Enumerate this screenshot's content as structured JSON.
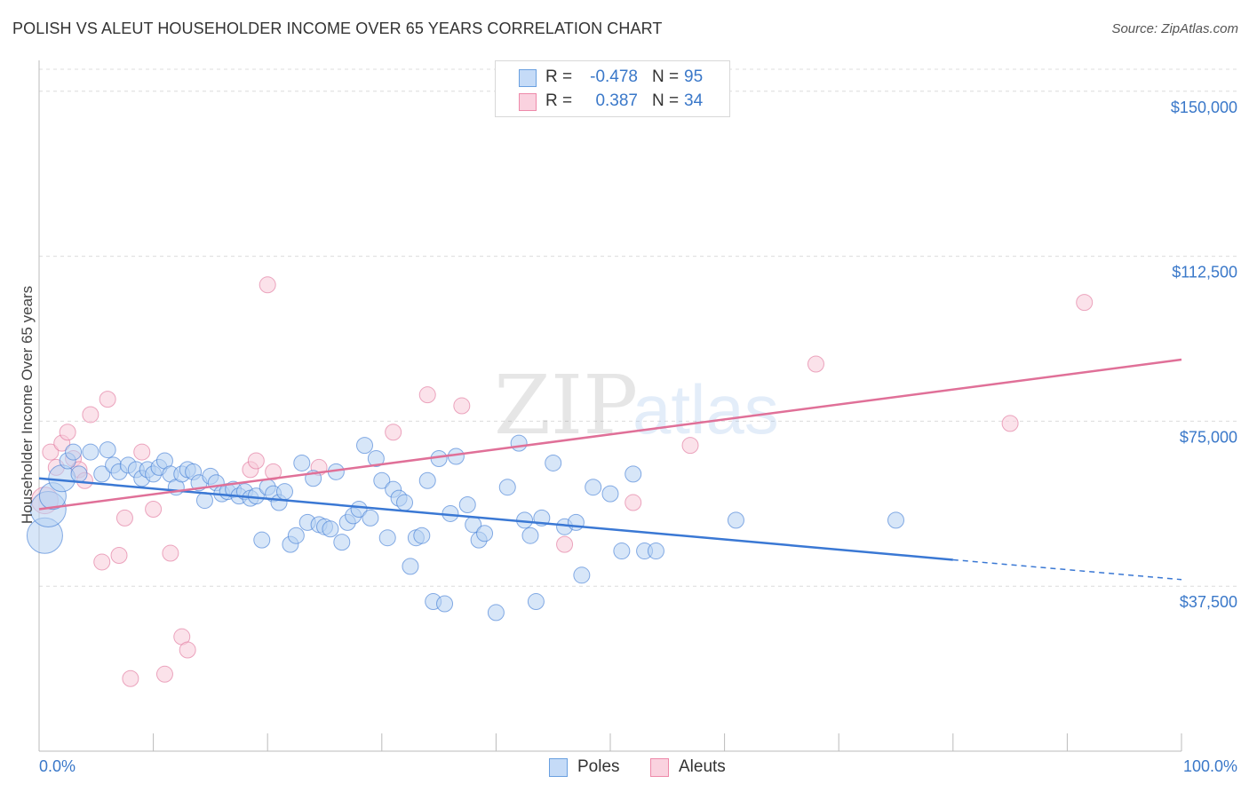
{
  "header": {
    "title": "POLISH VS ALEUT HOUSEHOLDER INCOME OVER 65 YEARS CORRELATION CHART",
    "source": "Source: ZipAtlas.com"
  },
  "watermark": {
    "part1": "ZIP",
    "part2": "atlas"
  },
  "legend_top": {
    "rows": [
      {
        "r_label": "R =",
        "r_value": "-0.478",
        "n_label": "N =",
        "n_value": "95",
        "color": "#6aa0e0",
        "fill": "#c5dbf7"
      },
      {
        "r_label": "R =",
        "r_value": "0.387",
        "n_label": "N =",
        "n_value": "34",
        "color": "#ee8aaa",
        "fill": "#fad2df"
      }
    ]
  },
  "legend_bottom": {
    "items": [
      {
        "label": "Poles",
        "color": "#6aa0e0",
        "fill": "#c5dbf7"
      },
      {
        "label": "Aleuts",
        "color": "#ee8aaa",
        "fill": "#fad2df"
      }
    ]
  },
  "chart_data": {
    "type": "scatter",
    "ylabel": "Householder Income Over 65 years",
    "xlim": [
      0,
      100
    ],
    "ylim": [
      0,
      155000
    ],
    "x_tick_labels": [
      "0.0%",
      "100.0%"
    ],
    "y_ticks": [
      37500,
      75000,
      112500,
      150000
    ],
    "y_tick_labels": [
      "$37,500",
      "$75,000",
      "$112,500",
      "$150,000"
    ],
    "grid": "dashed horizontal",
    "legend": "top-center and bottom",
    "series": [
      {
        "name": "Poles",
        "color": "#3a78d4",
        "point_fill": "#b7d1f3",
        "trend": {
          "x0": 0,
          "y0": 62000,
          "x1": 80,
          "y1": 43500,
          "dash_to_x": 100,
          "dash_to_y": 39000
        },
        "points": [
          [
            0.5,
            49000,
            3
          ],
          [
            0.8,
            55000,
            3
          ],
          [
            1.2,
            58000,
            2
          ],
          [
            2.0,
            62000,
            2
          ],
          [
            2.5,
            66000,
            1
          ],
          [
            3.0,
            68000,
            1
          ],
          [
            3.5,
            63000,
            1
          ],
          [
            4.5,
            68000,
            1
          ],
          [
            5.5,
            63000,
            1
          ],
          [
            6.0,
            68500,
            1
          ],
          [
            6.5,
            65000,
            1
          ],
          [
            7.0,
            63500,
            1
          ],
          [
            7.8,
            65000,
            1
          ],
          [
            8.5,
            64000,
            1
          ],
          [
            9.0,
            62000,
            1
          ],
          [
            9.5,
            64000,
            1
          ],
          [
            10.0,
            63000,
            1
          ],
          [
            10.5,
            64500,
            1
          ],
          [
            11.0,
            66000,
            1
          ],
          [
            11.5,
            63000,
            1
          ],
          [
            12.0,
            60000,
            1
          ],
          [
            12.5,
            63000,
            1
          ],
          [
            13.0,
            64000,
            1
          ],
          [
            13.5,
            63500,
            1
          ],
          [
            14.0,
            61000,
            1
          ],
          [
            14.5,
            57000,
            1
          ],
          [
            15.0,
            62500,
            1
          ],
          [
            15.5,
            61000,
            1
          ],
          [
            16.0,
            58500,
            1
          ],
          [
            16.5,
            59000,
            1
          ],
          [
            17.0,
            59500,
            1
          ],
          [
            17.5,
            58000,
            1
          ],
          [
            18.0,
            59000,
            1
          ],
          [
            18.5,
            57500,
            1
          ],
          [
            19.0,
            58000,
            1
          ],
          [
            19.5,
            48000,
            1
          ],
          [
            20.0,
            60000,
            1
          ],
          [
            20.5,
            58500,
            1
          ],
          [
            21.0,
            56500,
            1
          ],
          [
            21.5,
            59000,
            1
          ],
          [
            22.0,
            47000,
            1
          ],
          [
            22.5,
            49000,
            1
          ],
          [
            23.0,
            65500,
            1
          ],
          [
            23.5,
            52000,
            1
          ],
          [
            24.0,
            62000,
            1
          ],
          [
            24.5,
            51500,
            1
          ],
          [
            25.0,
            51000,
            1
          ],
          [
            25.5,
            50500,
            1
          ],
          [
            26.0,
            63500,
            1
          ],
          [
            26.5,
            47500,
            1
          ],
          [
            27.0,
            52000,
            1
          ],
          [
            27.5,
            53500,
            1
          ],
          [
            28.0,
            55000,
            1
          ],
          [
            28.5,
            69500,
            1
          ],
          [
            29.0,
            53000,
            1
          ],
          [
            29.5,
            66500,
            1
          ],
          [
            30.0,
            61500,
            1
          ],
          [
            30.5,
            48500,
            1
          ],
          [
            31.0,
            59500,
            1
          ],
          [
            31.5,
            57500,
            1
          ],
          [
            32.0,
            56500,
            1
          ],
          [
            32.5,
            42000,
            1
          ],
          [
            33.0,
            48500,
            1
          ],
          [
            33.5,
            49000,
            1
          ],
          [
            34.0,
            61500,
            1
          ],
          [
            34.5,
            34000,
            1
          ],
          [
            35.0,
            66500,
            1
          ],
          [
            35.5,
            33500,
            1
          ],
          [
            36.0,
            54000,
            1
          ],
          [
            36.5,
            67000,
            1
          ],
          [
            37.5,
            56000,
            1
          ],
          [
            38.0,
            51500,
            1
          ],
          [
            38.5,
            48000,
            1
          ],
          [
            39.0,
            49500,
            1
          ],
          [
            40.0,
            31500,
            1
          ],
          [
            41.0,
            60000,
            1
          ],
          [
            42.0,
            70000,
            1
          ],
          [
            42.5,
            52500,
            1
          ],
          [
            43.0,
            49000,
            1
          ],
          [
            43.5,
            34000,
            1
          ],
          [
            44.0,
            53000,
            1
          ],
          [
            45.0,
            65500,
            1
          ],
          [
            46.0,
            51000,
            1
          ],
          [
            47.0,
            52000,
            1
          ],
          [
            47.5,
            40000,
            1
          ],
          [
            48.5,
            60000,
            1
          ],
          [
            50.0,
            58500,
            1
          ],
          [
            51.0,
            45500,
            1
          ],
          [
            52.0,
            63000,
            1
          ],
          [
            53.0,
            45500,
            1
          ],
          [
            54.0,
            45500,
            1
          ],
          [
            61.0,
            52500,
            1
          ],
          [
            75.0,
            52500,
            1
          ]
        ]
      },
      {
        "name": "Aleuts",
        "color": "#e07098",
        "point_fill": "#f8cbd9",
        "trend": {
          "x0": 0,
          "y0": 55000,
          "x1": 100,
          "y1": 89000
        },
        "points": [
          [
            0.5,
            57000,
            2
          ],
          [
            1.0,
            68000,
            1
          ],
          [
            1.5,
            64500,
            1
          ],
          [
            2.0,
            70000,
            1
          ],
          [
            2.5,
            72500,
            1
          ],
          [
            3.0,
            66500,
            1
          ],
          [
            3.5,
            64000,
            1
          ],
          [
            4.0,
            61500,
            1
          ],
          [
            4.5,
            76500,
            1
          ],
          [
            5.5,
            43000,
            1
          ],
          [
            6.0,
            80000,
            1
          ],
          [
            7.0,
            44500,
            1
          ],
          [
            7.5,
            53000,
            1
          ],
          [
            8.0,
            16500,
            1
          ],
          [
            9.0,
            68000,
            1
          ],
          [
            10.0,
            55000,
            1
          ],
          [
            11.0,
            17500,
            1
          ],
          [
            11.5,
            45000,
            1
          ],
          [
            12.5,
            26000,
            1
          ],
          [
            13.0,
            23000,
            1
          ],
          [
            18.5,
            64000,
            1
          ],
          [
            19.0,
            66000,
            1
          ],
          [
            20.0,
            106000,
            1
          ],
          [
            20.5,
            63500,
            1
          ],
          [
            24.5,
            64500,
            1
          ],
          [
            31.0,
            72500,
            1
          ],
          [
            34.0,
            81000,
            1
          ],
          [
            37.0,
            78500,
            1
          ],
          [
            46.0,
            47000,
            1
          ],
          [
            52.0,
            56500,
            1
          ],
          [
            57.0,
            69500,
            1
          ],
          [
            68.0,
            88000,
            1
          ],
          [
            85.0,
            74500,
            1
          ],
          [
            91.5,
            102000,
            1
          ]
        ]
      }
    ]
  }
}
